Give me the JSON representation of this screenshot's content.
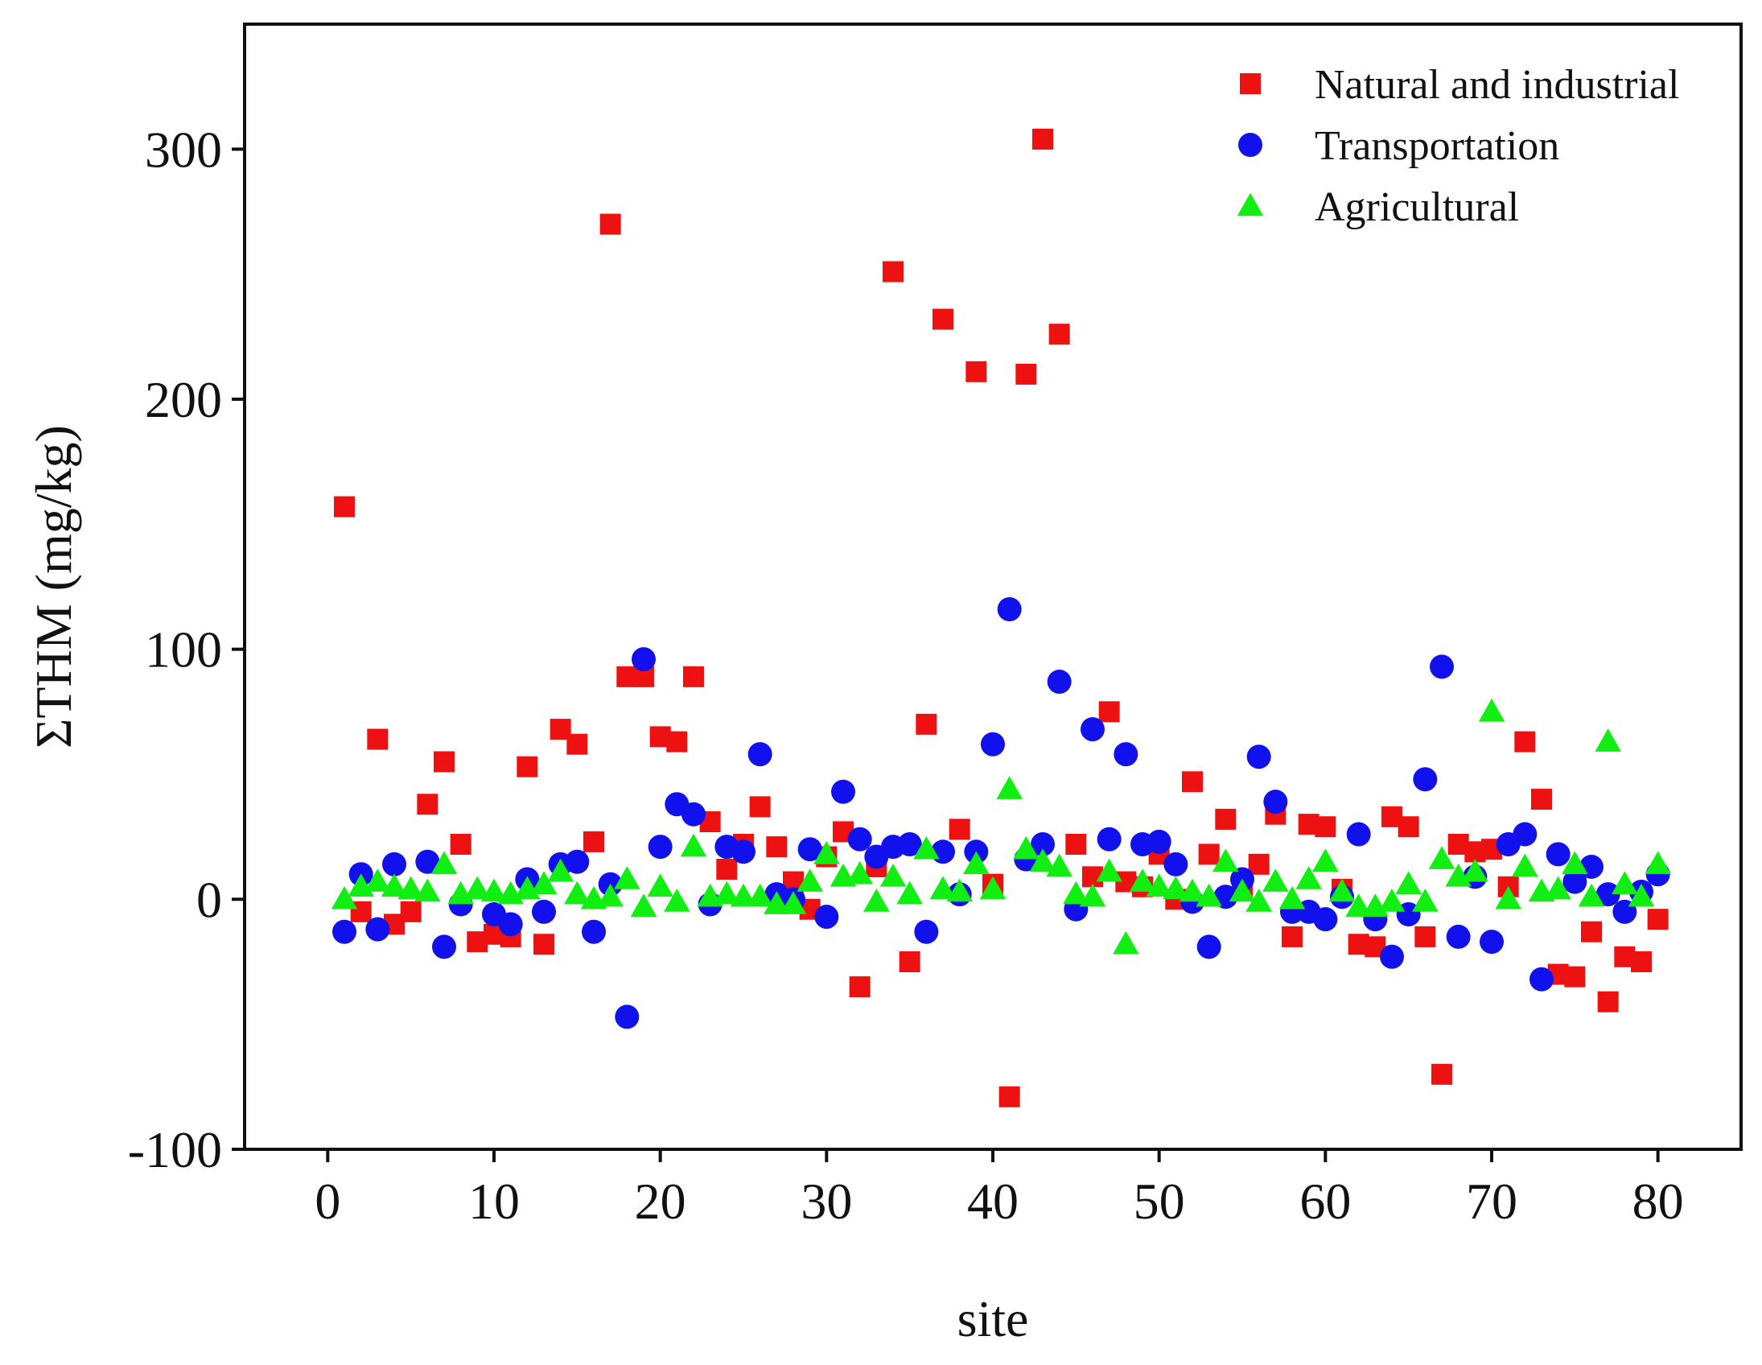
{
  "chart_data": {
    "type": "scatter",
    "xlabel": "site",
    "ylabel": "ΣTHM (mg/kg)",
    "xlim": [
      -5,
      85
    ],
    "ylim": [
      -100,
      350
    ],
    "xticks": [
      0,
      10,
      20,
      30,
      40,
      50,
      60,
      70,
      80
    ],
    "yticks": [
      -100,
      0,
      100,
      200,
      300
    ],
    "legend": "top-right",
    "series": [
      {
        "name": "Natural and industrial",
        "marker": "square",
        "color": "#ee1111",
        "x": [
          1,
          2,
          3,
          4,
          5,
          6,
          7,
          8,
          9,
          10,
          11,
          12,
          13,
          14,
          15,
          16,
          17,
          18,
          19,
          20,
          21,
          22,
          23,
          24,
          25,
          26,
          27,
          28,
          29,
          30,
          31,
          32,
          33,
          34,
          35,
          36,
          37,
          38,
          39,
          40,
          41,
          42,
          43,
          44,
          45,
          46,
          47,
          48,
          49,
          50,
          51,
          52,
          53,
          54,
          55,
          56,
          57,
          58,
          59,
          60,
          61,
          62,
          63,
          64,
          65,
          66,
          67,
          68,
          69,
          70,
          71,
          72,
          73,
          74,
          75,
          76,
          77,
          78,
          79,
          80
        ],
        "y": [
          157,
          -5,
          64,
          -10,
          -5,
          38,
          55,
          22,
          -17,
          -14,
          -15,
          53,
          -18,
          68,
          62,
          23,
          270,
          89,
          89,
          65,
          63,
          89,
          31,
          12,
          22,
          37,
          21,
          7,
          -4,
          17,
          27,
          -35,
          13,
          251,
          -25,
          70,
          232,
          28,
          211,
          6,
          -79,
          210,
          304,
          226,
          22,
          9,
          75,
          7,
          5,
          18,
          0,
          47,
          18,
          32,
          5,
          14,
          34,
          -15,
          30,
          29,
          4,
          -18,
          -19,
          33,
          29,
          -15,
          -70,
          22,
          19,
          20,
          5,
          63,
          40,
          -30,
          -31,
          -13,
          -41,
          -23,
          -25,
          -8
        ]
      },
      {
        "name": "Transportation",
        "marker": "circle",
        "color": "#1111ee",
        "x": [
          1,
          2,
          3,
          4,
          6,
          7,
          8,
          10,
          11,
          12,
          13,
          14,
          15,
          16,
          17,
          18,
          19,
          20,
          21,
          22,
          23,
          24,
          25,
          26,
          27,
          28,
          29,
          30,
          31,
          32,
          33,
          34,
          35,
          36,
          37,
          38,
          39,
          40,
          41,
          42,
          43,
          44,
          45,
          46,
          47,
          48,
          49,
          50,
          51,
          52,
          53,
          54,
          55,
          56,
          57,
          58,
          59,
          60,
          61,
          62,
          63,
          64,
          65,
          66,
          67,
          68,
          69,
          70,
          71,
          72,
          73,
          74,
          75,
          76,
          77,
          78,
          79,
          80
        ],
        "y": [
          -13,
          10,
          -12,
          14,
          15,
          -19,
          -2,
          -6,
          -10,
          8,
          -5,
          14,
          15,
          -13,
          6,
          -47,
          96,
          21,
          38,
          34,
          -2,
          21,
          19,
          58,
          2,
          0,
          20,
          -7,
          43,
          24,
          17,
          21,
          22,
          -13,
          19,
          2,
          19,
          62,
          116,
          16,
          22,
          87,
          -4,
          68,
          24,
          58,
          22,
          23,
          14,
          -1,
          -19,
          1,
          8,
          57,
          39,
          -5,
          -5,
          -8,
          1,
          26,
          -8,
          -23,
          -6,
          48,
          93,
          -15,
          9,
          -17,
          22,
          26,
          -32,
          18,
          7,
          13,
          2,
          -5,
          3,
          10
        ]
      },
      {
        "name": "Agricultural",
        "marker": "triangle",
        "color": "#11ee11",
        "x": [
          1,
          2,
          3,
          4,
          5,
          6,
          7,
          8,
          9,
          10,
          11,
          12,
          13,
          14,
          15,
          16,
          17,
          18,
          19,
          20,
          21,
          22,
          23,
          24,
          25,
          26,
          27,
          28,
          29,
          30,
          31,
          32,
          33,
          34,
          35,
          36,
          37,
          38,
          39,
          40,
          41,
          42,
          43,
          44,
          45,
          46,
          47,
          48,
          49,
          50,
          51,
          52,
          53,
          54,
          55,
          56,
          57,
          58,
          59,
          60,
          61,
          62,
          63,
          64,
          65,
          66,
          67,
          68,
          69,
          70,
          71,
          72,
          73,
          74,
          75,
          76,
          77,
          78,
          79,
          80
        ],
        "y": [
          0,
          5,
          7,
          5,
          4,
          3,
          14,
          2,
          4,
          3,
          2,
          4,
          6,
          11,
          2,
          0,
          1,
          8,
          -3,
          5,
          -1,
          21,
          1,
          2,
          1,
          1,
          -2,
          -2,
          7,
          18,
          9,
          10,
          -1,
          9,
          2,
          20,
          4,
          3,
          14,
          4,
          44,
          20,
          15,
          13,
          2,
          1,
          11,
          -18,
          7,
          5,
          4,
          3,
          1,
          15,
          3,
          -1,
          7,
          0,
          8,
          15,
          3,
          -3,
          -3,
          -1,
          6,
          -1,
          16,
          9,
          11,
          75,
          0,
          13,
          3,
          4,
          14,
          1,
          63,
          6,
          1,
          14
        ]
      }
    ]
  }
}
